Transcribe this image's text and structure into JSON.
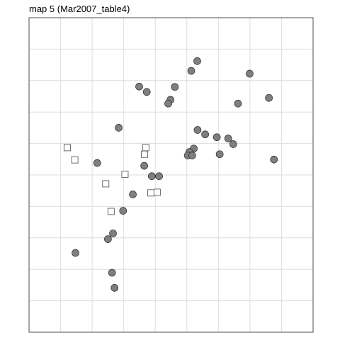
{
  "chart_data": {
    "type": "scatter",
    "title": "map 5 (Mar2007_table4)",
    "xlabel": "",
    "ylabel": "",
    "xlim": [
      0,
      9
    ],
    "ylim": [
      0,
      10
    ],
    "grid": true,
    "legend": "none",
    "colors": {
      "panel_border": "#4d4d4d",
      "grid": "#dedede",
      "point_fill": "#7f7f7f",
      "point_stroke": "#2b2b2b",
      "square_fill": "#ffffff",
      "square_stroke": "#5a5a5a"
    },
    "series": [
      {
        "shape": "circle",
        "points": [
          [
            5.33,
            8.62
          ],
          [
            5.14,
            8.31
          ],
          [
            6.99,
            8.22
          ],
          [
            3.49,
            7.81
          ],
          [
            4.62,
            7.8
          ],
          [
            3.73,
            7.64
          ],
          [
            4.48,
            7.39
          ],
          [
            4.41,
            7.27
          ],
          [
            6.62,
            7.27
          ],
          [
            7.6,
            7.45
          ],
          [
            2.84,
            6.5
          ],
          [
            5.34,
            6.43
          ],
          [
            5.58,
            6.29
          ],
          [
            5.95,
            6.2
          ],
          [
            6.31,
            6.16
          ],
          [
            6.47,
            5.98
          ],
          [
            5.22,
            5.84
          ],
          [
            5.08,
            5.73
          ],
          [
            5.03,
            5.62
          ],
          [
            5.17,
            5.62
          ],
          [
            6.04,
            5.66
          ],
          [
            7.76,
            5.49
          ],
          [
            2.16,
            5.38
          ],
          [
            3.65,
            5.29
          ],
          [
            3.89,
            4.96
          ],
          [
            4.12,
            4.96
          ],
          [
            3.29,
            4.38
          ],
          [
            2.98,
            3.86
          ],
          [
            2.66,
            3.14
          ],
          [
            2.5,
            2.96
          ],
          [
            1.47,
            2.52
          ],
          [
            2.63,
            1.89
          ],
          [
            2.71,
            1.41
          ]
        ]
      },
      {
        "shape": "square",
        "points": [
          [
            1.21,
            5.87
          ],
          [
            1.45,
            5.48
          ],
          [
            3.7,
            5.87
          ],
          [
            3.66,
            5.66
          ],
          [
            3.04,
            5.02
          ],
          [
            2.43,
            4.72
          ],
          [
            3.86,
            4.43
          ],
          [
            4.06,
            4.45
          ],
          [
            2.6,
            3.84
          ]
        ]
      }
    ]
  }
}
